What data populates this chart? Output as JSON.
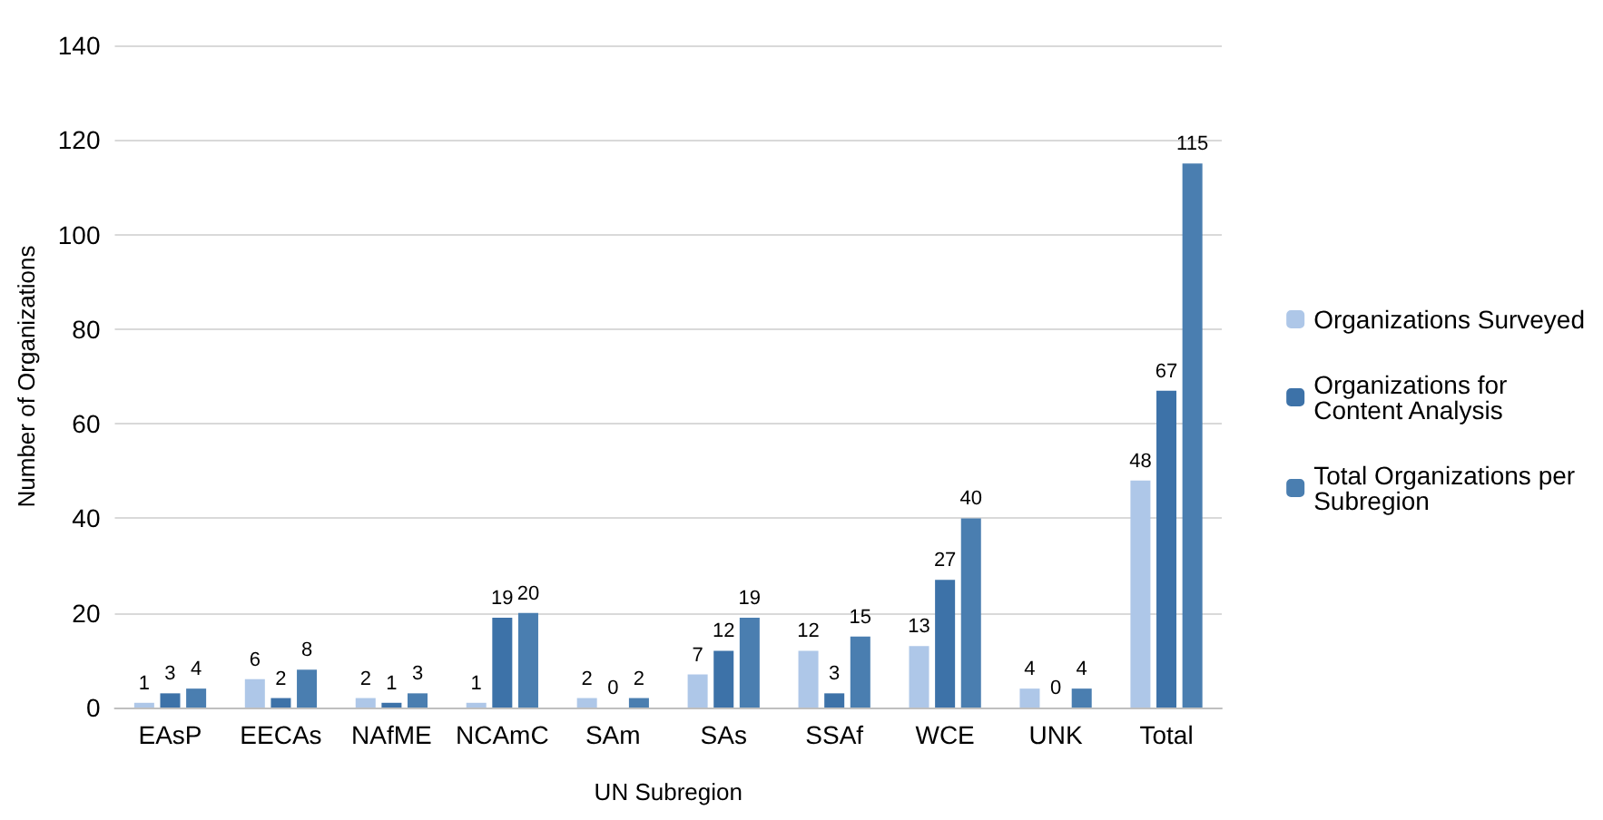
{
  "chart_data": {
    "type": "bar",
    "xlabel": "UN Subregion",
    "ylabel": "Number of Organizations",
    "categories": [
      "EAsP",
      "EECAs",
      "NAfME",
      "NCAmC",
      "SAm",
      "SAs",
      "SSAf",
      "WCE",
      "UNK",
      "Total"
    ],
    "series": [
      {
        "name": "Organizations Surveyed",
        "color": "#aec7e8",
        "values": [
          1,
          6,
          2,
          1,
          2,
          7,
          12,
          13,
          4,
          48
        ]
      },
      {
        "name": "Organizations for Content Analysis",
        "color": "#3d72a8",
        "values": [
          3,
          2,
          1,
          19,
          0,
          12,
          3,
          27,
          0,
          67
        ]
      },
      {
        "name": "Total Organizations per Subregion",
        "color": "#4a7eb0",
        "values": [
          4,
          8,
          3,
          20,
          2,
          19,
          15,
          40,
          4,
          115
        ]
      }
    ],
    "ylim": [
      0,
      140
    ],
    "yticks": [
      0,
      20,
      40,
      60,
      80,
      100,
      120,
      140
    ],
    "grid": "y",
    "legend": "right",
    "data_labels": true
  }
}
